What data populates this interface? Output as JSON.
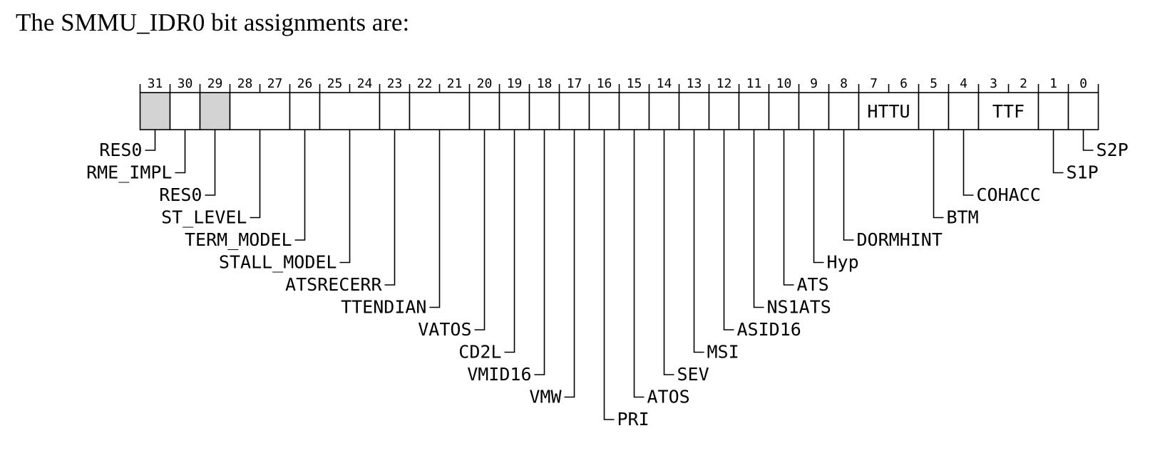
{
  "heading": "The SMMU_IDR0 bit assignments are:",
  "colors": {
    "reserved_fill": "#d3d3d3",
    "line": "#000000",
    "background": "#ffffff"
  },
  "register": {
    "bit_numbers": [
      "31",
      "30",
      "29",
      "28",
      "27",
      "26",
      "25",
      "24",
      "23",
      "22",
      "21",
      "20",
      "19",
      "18",
      "17",
      "16",
      "15",
      "14",
      "13",
      "12",
      "11",
      "10",
      "9",
      "8",
      "7",
      "6",
      "5",
      "4",
      "3",
      "2",
      "1",
      "0"
    ],
    "fields": [
      {
        "name": "RES0",
        "hi": 31,
        "lo": 31,
        "reserved": true,
        "in_box": false,
        "side": "left"
      },
      {
        "name": "RME_IMPL",
        "hi": 30,
        "lo": 30,
        "reserved": false,
        "in_box": false,
        "side": "left"
      },
      {
        "name": "RES0",
        "hi": 29,
        "lo": 29,
        "reserved": true,
        "in_box": false,
        "side": "left"
      },
      {
        "name": "ST_LEVEL",
        "hi": 28,
        "lo": 27,
        "reserved": false,
        "in_box": false,
        "side": "left"
      },
      {
        "name": "TERM_MODEL",
        "hi": 26,
        "lo": 26,
        "reserved": false,
        "in_box": false,
        "side": "left"
      },
      {
        "name": "STALL_MODEL",
        "hi": 25,
        "lo": 24,
        "reserved": false,
        "in_box": false,
        "side": "left"
      },
      {
        "name": "ATSRECERR",
        "hi": 23,
        "lo": 23,
        "reserved": false,
        "in_box": false,
        "side": "left"
      },
      {
        "name": "TTENDIAN",
        "hi": 22,
        "lo": 21,
        "reserved": false,
        "in_box": false,
        "side": "left"
      },
      {
        "name": "VATOS",
        "hi": 20,
        "lo": 20,
        "reserved": false,
        "in_box": false,
        "side": "left"
      },
      {
        "name": "CD2L",
        "hi": 19,
        "lo": 19,
        "reserved": false,
        "in_box": false,
        "side": "left"
      },
      {
        "name": "VMID16",
        "hi": 18,
        "lo": 18,
        "reserved": false,
        "in_box": false,
        "side": "left"
      },
      {
        "name": "VMW",
        "hi": 17,
        "lo": 17,
        "reserved": false,
        "in_box": false,
        "side": "left"
      },
      {
        "name": "PRI",
        "hi": 16,
        "lo": 16,
        "reserved": false,
        "in_box": false,
        "side": "right"
      },
      {
        "name": "ATOS",
        "hi": 15,
        "lo": 15,
        "reserved": false,
        "in_box": false,
        "side": "right"
      },
      {
        "name": "SEV",
        "hi": 14,
        "lo": 14,
        "reserved": false,
        "in_box": false,
        "side": "right"
      },
      {
        "name": "MSI",
        "hi": 13,
        "lo": 13,
        "reserved": false,
        "in_box": false,
        "side": "right"
      },
      {
        "name": "ASID16",
        "hi": 12,
        "lo": 12,
        "reserved": false,
        "in_box": false,
        "side": "right"
      },
      {
        "name": "NS1ATS",
        "hi": 11,
        "lo": 11,
        "reserved": false,
        "in_box": false,
        "side": "right"
      },
      {
        "name": "ATS",
        "hi": 10,
        "lo": 10,
        "reserved": false,
        "in_box": false,
        "side": "right"
      },
      {
        "name": "Hyp",
        "hi": 9,
        "lo": 9,
        "reserved": false,
        "in_box": false,
        "side": "right"
      },
      {
        "name": "DORMHINT",
        "hi": 8,
        "lo": 8,
        "reserved": false,
        "in_box": false,
        "side": "right"
      },
      {
        "name": "HTTU",
        "hi": 7,
        "lo": 6,
        "reserved": false,
        "in_box": true,
        "side": "none"
      },
      {
        "name": "BTM",
        "hi": 5,
        "lo": 5,
        "reserved": false,
        "in_box": false,
        "side": "right"
      },
      {
        "name": "COHACC",
        "hi": 4,
        "lo": 4,
        "reserved": false,
        "in_box": false,
        "side": "right"
      },
      {
        "name": "TTF",
        "hi": 3,
        "lo": 2,
        "reserved": false,
        "in_box": true,
        "side": "none"
      },
      {
        "name": "S1P",
        "hi": 1,
        "lo": 1,
        "reserved": false,
        "in_box": false,
        "side": "right"
      },
      {
        "name": "S2P",
        "hi": 0,
        "lo": 0,
        "reserved": false,
        "in_box": false,
        "side": "right"
      }
    ]
  }
}
